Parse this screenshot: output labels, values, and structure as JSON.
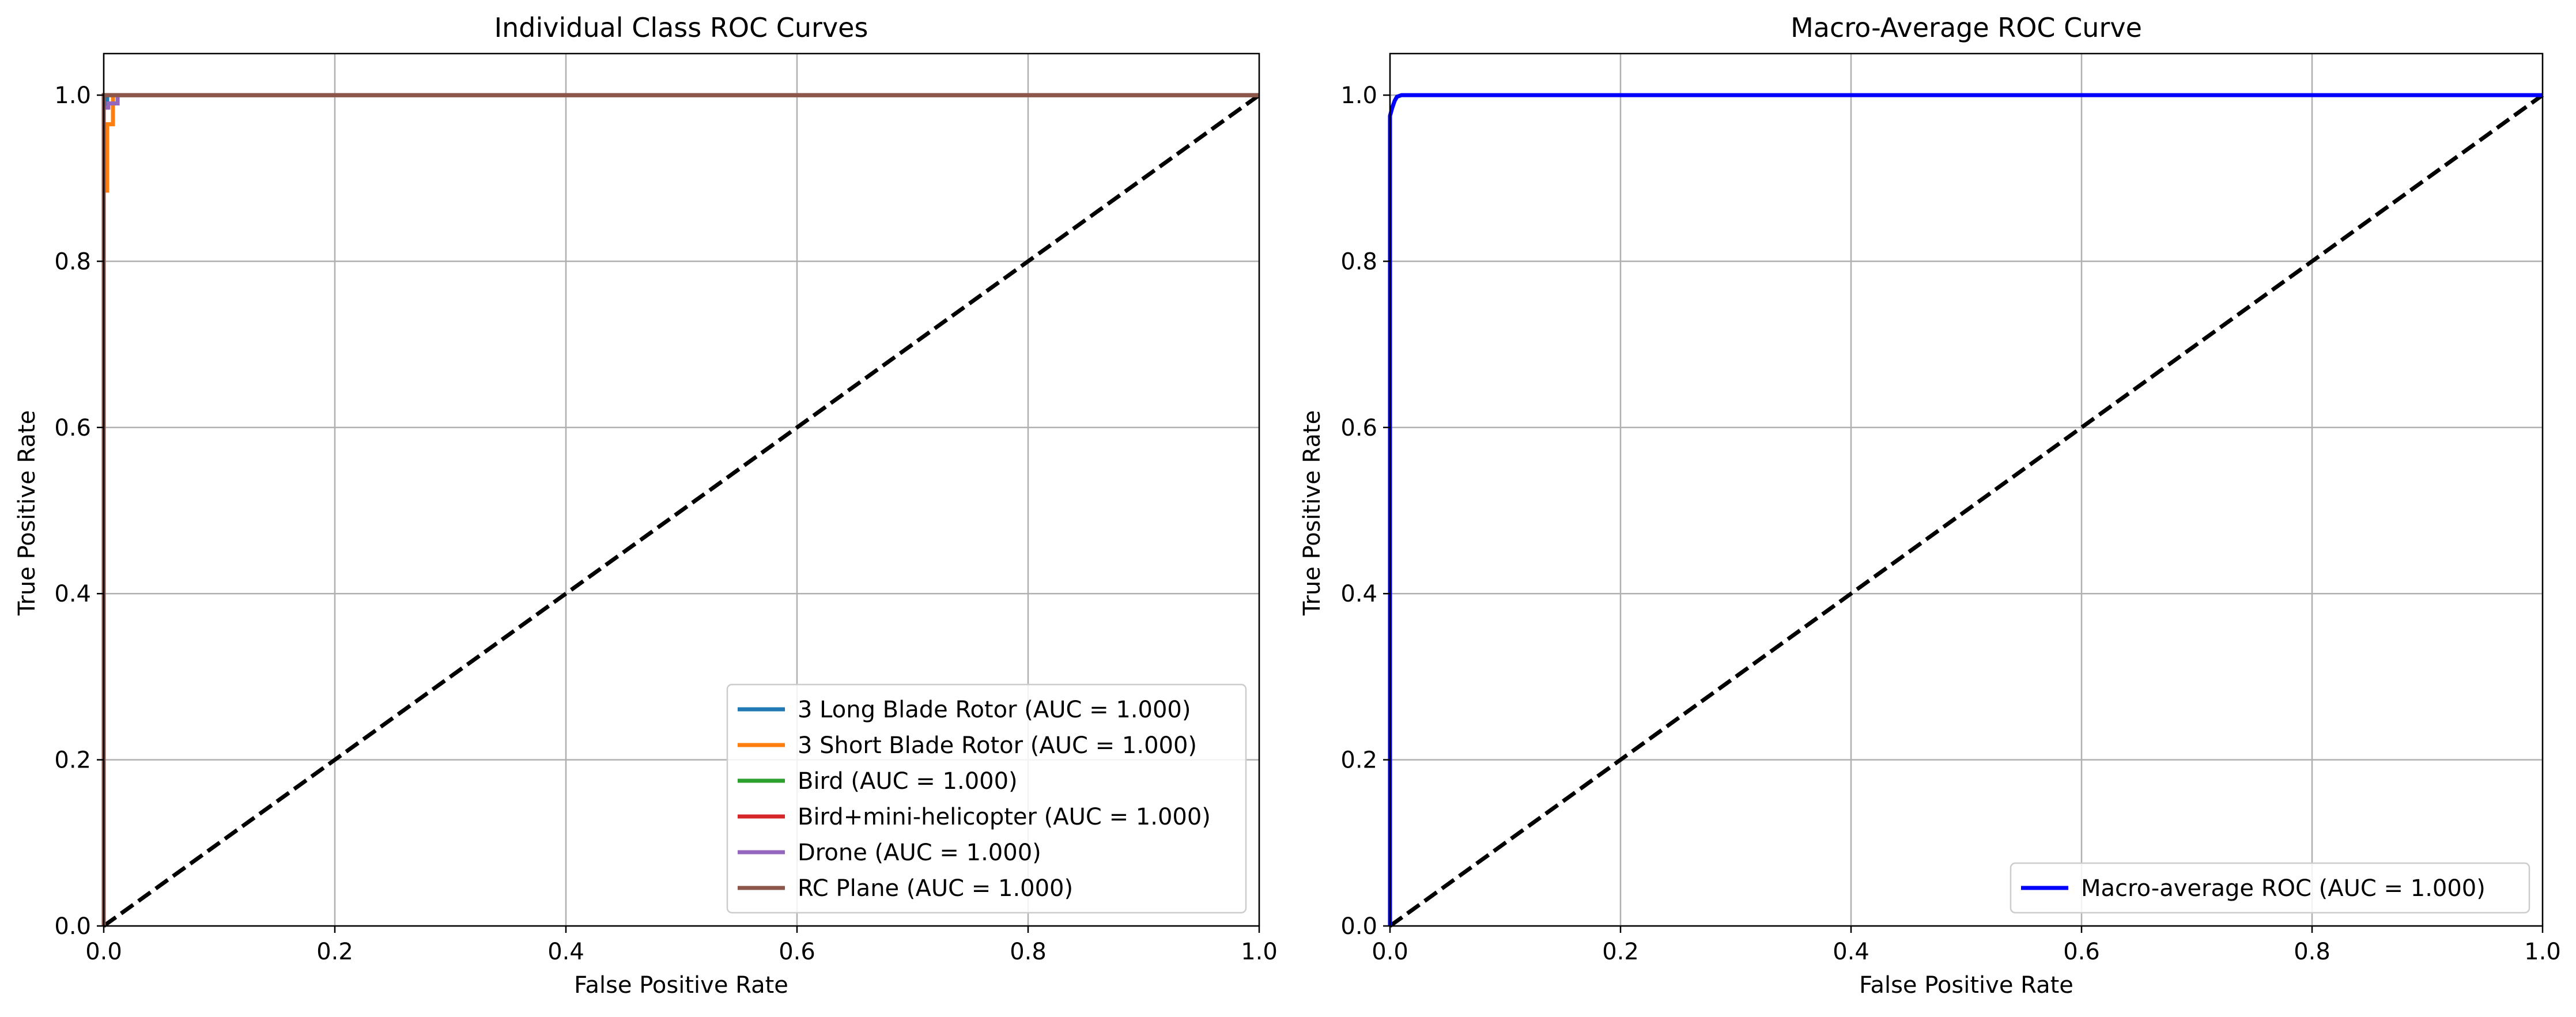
{
  "chart_data": [
    {
      "type": "line",
      "title": "Individual Class ROC Curves",
      "xlabel": "False Positive Rate",
      "ylabel": "True Positive Rate",
      "xlim": [
        0,
        1.0
      ],
      "ylim": [
        0,
        1.05
      ],
      "xticks": [
        "0.0",
        "0.2",
        "0.4",
        "0.6",
        "0.8",
        "1.0"
      ],
      "yticks": [
        "0.0",
        "0.2",
        "0.4",
        "0.6",
        "0.8",
        "1.0"
      ],
      "grid": true,
      "legend_position": "lower right",
      "series": [
        {
          "name": "3 Long Blade Rotor (AUC = 1.000)",
          "color": "#1f77b4",
          "x": [
            0,
            0,
            0.003,
            0.003,
            1.0
          ],
          "y": [
            0,
            0.985,
            0.985,
            1.0,
            1.0
          ]
        },
        {
          "name": "3 Short Blade Rotor (AUC = 1.000)",
          "color": "#ff7f0e",
          "x": [
            0,
            0,
            0.003,
            0.003,
            0.008,
            0.008,
            1.0
          ],
          "y": [
            0,
            0.885,
            0.885,
            0.965,
            0.965,
            1.0,
            1.0
          ]
        },
        {
          "name": "Bird (AUC = 1.000)",
          "color": "#2ca02c",
          "x": [
            0,
            0,
            1.0
          ],
          "y": [
            0,
            1.0,
            1.0
          ]
        },
        {
          "name": "Bird+mini-helicopter (AUC = 1.000)",
          "color": "#d62728",
          "x": [
            0,
            0,
            1.0
          ],
          "y": [
            0,
            1.0,
            1.0
          ]
        },
        {
          "name": "Drone (AUC = 1.000)",
          "color": "#9467bd",
          "x": [
            0,
            0,
            0.004,
            0.004,
            0.012,
            0.012,
            1.0
          ],
          "y": [
            0,
            0.985,
            0.985,
            0.99,
            0.99,
            1.0,
            1.0
          ]
        },
        {
          "name": "RC Plane (AUC = 1.000)",
          "color": "#8c564b",
          "x": [
            0,
            0,
            1.0
          ],
          "y": [
            0,
            1.0,
            1.0
          ]
        }
      ],
      "reference_line": {
        "x": [
          0,
          1
        ],
        "y": [
          0,
          1
        ],
        "color": "#000000",
        "style": "dashed"
      }
    },
    {
      "type": "line",
      "title": "Macro-Average ROC Curve",
      "xlabel": "False Positive Rate",
      "ylabel": "True Positive Rate",
      "xlim": [
        0,
        1.0
      ],
      "ylim": [
        0,
        1.05
      ],
      "xticks": [
        "0.0",
        "0.2",
        "0.4",
        "0.6",
        "0.8",
        "1.0"
      ],
      "yticks": [
        "0.0",
        "0.2",
        "0.4",
        "0.6",
        "0.8",
        "1.0"
      ],
      "grid": true,
      "legend_position": "lower right",
      "series": [
        {
          "name": "Macro-average ROC (AUC = 1.000)",
          "color": "#0000ff",
          "x": [
            0,
            0,
            0.002,
            0.004,
            0.006,
            0.01,
            1.0
          ],
          "y": [
            0,
            0.975,
            0.985,
            0.993,
            0.998,
            1.0,
            1.0
          ]
        }
      ],
      "reference_line": {
        "x": [
          0,
          1
        ],
        "y": [
          0,
          1
        ],
        "color": "#000000",
        "style": "dashed"
      }
    }
  ]
}
